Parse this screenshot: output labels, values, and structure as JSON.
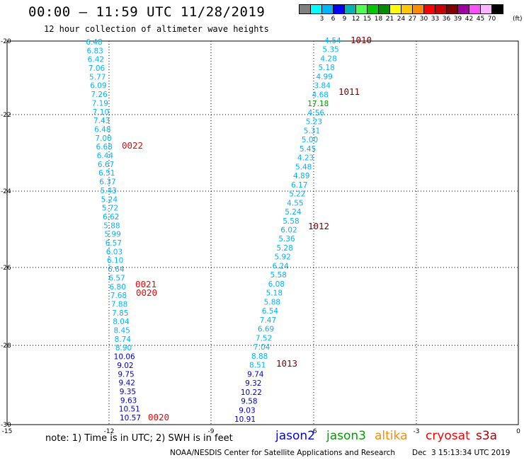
{
  "header": {
    "title": "00:00 – 11:59 UTC 11/28/2019",
    "subtitle": "12 hour collection of altimeter wave heights"
  },
  "colorbar": {
    "unit": "(ft)",
    "colors": [
      "#808080",
      "#00ffff",
      "#00b4ff",
      "#0000ff",
      "#00b4b4",
      "#00ff00",
      "#00b400",
      "#00ff00",
      "#ffff00",
      "#ffb400",
      "#ff8000",
      "#ff0000",
      "#b40000",
      "#800000",
      "#b400b4",
      "#ff00ff",
      "#ffb4ff",
      "#000000"
    ],
    "cells": [
      {
        "color": "#808080",
        "label": ""
      },
      {
        "color": "#00ffff",
        "label": "3"
      },
      {
        "color": "#00b4ff",
        "label": "6"
      },
      {
        "color": "#0000ff",
        "label": "9"
      },
      {
        "color": "#00b4b4",
        "label": "12"
      },
      {
        "color": "#50ff50",
        "label": "15"
      },
      {
        "color": "#00c800",
        "label": "18"
      },
      {
        "color": "#008c00",
        "label": "21"
      },
      {
        "color": "#ffff00",
        "label": "24"
      },
      {
        "color": "#ffc800",
        "label": "27"
      },
      {
        "color": "#ff8c00",
        "label": "30"
      },
      {
        "color": "#ff0000",
        "label": "33"
      },
      {
        "color": "#c80000",
        "label": "36"
      },
      {
        "color": "#800000",
        "label": "39"
      },
      {
        "color": "#a000a0",
        "label": "42"
      },
      {
        "color": "#ff50ff",
        "label": "45"
      },
      {
        "color": "#ffb4ff",
        "label": "70"
      },
      {
        "color": "#000000",
        "label": ""
      }
    ]
  },
  "axes": {
    "lon_labels": [
      "-15",
      "-12",
      "-9",
      "-6",
      "-3",
      "0"
    ],
    "lat_labels": [
      "-20",
      "-22",
      "-24",
      "-26",
      "-28",
      "-30"
    ]
  },
  "tracks": {
    "left": [
      {
        "v": "6.48",
        "c": "#00b4ff"
      },
      {
        "v": "6.83",
        "c": "#00b4ff"
      },
      {
        "v": "6.42",
        "c": "#00b4ff"
      },
      {
        "v": "7.06",
        "c": "#00b4ff"
      },
      {
        "v": "5.77",
        "c": "#00b4ff"
      },
      {
        "v": "6.09",
        "c": "#00b4ff"
      },
      {
        "v": "7.26",
        "c": "#00b4ff"
      },
      {
        "v": "7.19",
        "c": "#00b4ff"
      },
      {
        "v": "7.10",
        "c": "#00b4ff"
      },
      {
        "v": "7.43",
        "c": "#00b4ff"
      },
      {
        "v": "6.48",
        "c": "#00b4ff"
      },
      {
        "v": "7.00",
        "c": "#00b4ff"
      },
      {
        "v": "6.68",
        "c": "#00b4ff"
      },
      {
        "v": "6.44",
        "c": "#00b4ff"
      },
      {
        "v": "6.67",
        "c": "#00b4ff"
      },
      {
        "v": "6.51",
        "c": "#00b4ff"
      },
      {
        "v": "6.37",
        "c": "#00b4ff"
      },
      {
        "v": "5.43",
        "c": "#00b4ff"
      },
      {
        "v": "5.24",
        "c": "#00b4ff"
      },
      {
        "v": "5.72",
        "c": "#00b4ff"
      },
      {
        "v": "6.62",
        "c": "#00b4ff"
      },
      {
        "v": "5.88",
        "c": "#00b4ff"
      },
      {
        "v": "5.99",
        "c": "#00b4ff"
      },
      {
        "v": "6.57",
        "c": "#00b4ff"
      },
      {
        "v": "6.03",
        "c": "#00b4ff"
      },
      {
        "v": "6.10",
        "c": "#00b4ff"
      },
      {
        "v": "6.64",
        "c": "#00b4ff"
      },
      {
        "v": "6.57",
        "c": "#00b4ff"
      },
      {
        "v": "6.80",
        "c": "#00b4ff"
      },
      {
        "v": "7.68",
        "c": "#00b4ff"
      },
      {
        "v": "7.88",
        "c": "#00b4ff"
      },
      {
        "v": "7.85",
        "c": "#00b4ff"
      },
      {
        "v": "8.04",
        "c": "#00b4ff"
      },
      {
        "v": "8.45",
        "c": "#00b4ff"
      },
      {
        "v": "8.74",
        "c": "#00b4ff"
      },
      {
        "v": "8.90",
        "c": "#00b4ff"
      },
      {
        "v": "10.06",
        "c": "#0000cc"
      },
      {
        "v": "9.02",
        "c": "#0000cc"
      },
      {
        "v": "9.75",
        "c": "#0000cc"
      },
      {
        "v": "9.42",
        "c": "#0000cc"
      },
      {
        "v": "9.35",
        "c": "#0000cc"
      },
      {
        "v": "9.63",
        "c": "#0000cc"
      },
      {
        "v": "10.51",
        "c": "#0000cc"
      },
      {
        "v": "10.57",
        "c": "#0000cc"
      }
    ],
    "right": [
      {
        "v": "4.54",
        "c": "#00b4ff"
      },
      {
        "v": "5.35",
        "c": "#00b4ff"
      },
      {
        "v": "4.28",
        "c": "#00b4ff"
      },
      {
        "v": "5.18",
        "c": "#00b4ff"
      },
      {
        "v": "4.99",
        "c": "#00b4ff"
      },
      {
        "v": "3.84",
        "c": "#00b4ff"
      },
      {
        "v": "4.68",
        "c": "#00b4ff"
      },
      {
        "v": "17.18",
        "c": "#00a000"
      },
      {
        "v": "4.56",
        "c": "#00b4ff"
      },
      {
        "v": "5.23",
        "c": "#00b4ff"
      },
      {
        "v": "5.31",
        "c": "#00b4ff"
      },
      {
        "v": "5.00",
        "c": "#00b4ff"
      },
      {
        "v": "5.45",
        "c": "#00b4ff"
      },
      {
        "v": "4.23",
        "c": "#00b4ff"
      },
      {
        "v": "5.48",
        "c": "#00b4ff"
      },
      {
        "v": "4.89",
        "c": "#00b4ff"
      },
      {
        "v": "6.17",
        "c": "#00b4ff"
      },
      {
        "v": "5.22",
        "c": "#00b4ff"
      },
      {
        "v": "4.55",
        "c": "#00b4ff"
      },
      {
        "v": "5.24",
        "c": "#00b4ff"
      },
      {
        "v": "5.58",
        "c": "#00b4ff"
      },
      {
        "v": "6.02",
        "c": "#00b4ff"
      },
      {
        "v": "5.36",
        "c": "#00b4ff"
      },
      {
        "v": "5.28",
        "c": "#00b4ff"
      },
      {
        "v": "5.92",
        "c": "#00b4ff"
      },
      {
        "v": "6.24",
        "c": "#00b4ff"
      },
      {
        "v": "5.58",
        "c": "#00b4ff"
      },
      {
        "v": "6.08",
        "c": "#00b4ff"
      },
      {
        "v": "5.18",
        "c": "#00b4ff"
      },
      {
        "v": "5.88",
        "c": "#00b4ff"
      },
      {
        "v": "6.54",
        "c": "#00b4ff"
      },
      {
        "v": "7.47",
        "c": "#00b4ff"
      },
      {
        "v": "6.69",
        "c": "#00b4ff"
      },
      {
        "v": "7.52",
        "c": "#00b4ff"
      },
      {
        "v": "7.04",
        "c": "#00b4ff"
      },
      {
        "v": "8.88",
        "c": "#00b4ff"
      },
      {
        "v": "8.51",
        "c": "#00b4ff"
      },
      {
        "v": "9.74",
        "c": "#0000cc"
      },
      {
        "v": "9.32",
        "c": "#0000cc"
      },
      {
        "v": "10.22",
        "c": "#0000cc"
      },
      {
        "v": "9.58",
        "c": "#0000cc"
      },
      {
        "v": "9.03",
        "c": "#0000cc"
      },
      {
        "v": "10.91",
        "c": "#0000cc"
      }
    ]
  },
  "time_labels": [
    {
      "t": "1010",
      "c": "#800000"
    },
    {
      "t": "1011",
      "c": "#800000"
    },
    {
      "t": "0022",
      "c": "#ff0000"
    },
    {
      "t": "1012",
      "c": "#800000"
    },
    {
      "t": "0021",
      "c": "#ff0000"
    },
    {
      "t": "0020",
      "c": "#ff0000"
    },
    {
      "t": "1013",
      "c": "#800000"
    },
    {
      "t": "0020",
      "c": "#ff0000"
    }
  ],
  "footer": {
    "note": "note: 1) Time is in UTC; 2) SWH is in feet",
    "satellites": [
      {
        "name": "jason2",
        "color": "#0000ff"
      },
      {
        "name": "jason3",
        "color": "#00a000"
      },
      {
        "name": "altika",
        "color": "#ff8c00"
      },
      {
        "name": "cryosat",
        "color": "#ff0000"
      },
      {
        "name": "s3a",
        "color": "#b40000"
      }
    ],
    "credit": "NOAA/NESDIS Center for Satellite Applications and Research",
    "timestamp": "Dec  3 15:13:34 UTC 2019"
  }
}
